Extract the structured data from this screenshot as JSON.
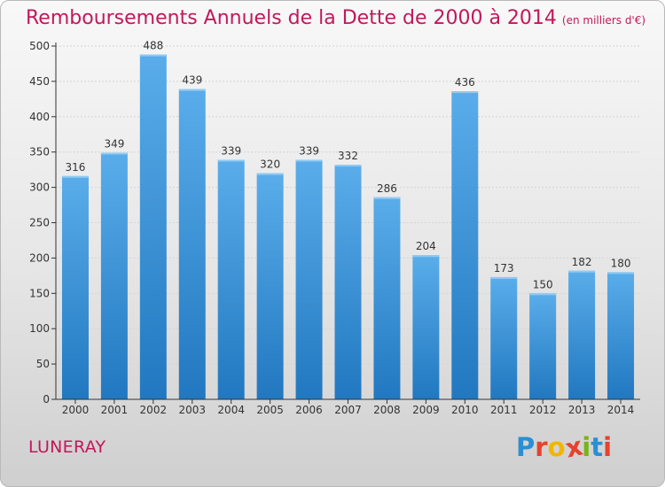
{
  "colors": {
    "title": "#c2185b",
    "bar_top": "#5aadea",
    "bar_bottom": "#2178c0",
    "axis": "#333333",
    "grid": "#d4d4d4",
    "brand": [
      "#2a8fd4",
      "#e8412c",
      "#f2b600",
      "#e8412c",
      "#7ab317",
      "#2a8fd4",
      "#e8412c"
    ]
  },
  "header": {
    "title": "Remboursements Annuels de la Dette de 2000 à 2014",
    "unit": "(en milliers d'€)"
  },
  "footer": {
    "city": "LUNERAY",
    "brand": [
      "P",
      "r",
      "o",
      "x",
      "i",
      "t",
      "i"
    ]
  },
  "chart_data": {
    "type": "bar",
    "title": "Remboursements Annuels de la Dette de 2000 à 2014",
    "subtitle": "(en milliers d'€)",
    "categories": [
      "2000",
      "2001",
      "2002",
      "2003",
      "2004",
      "2005",
      "2006",
      "2007",
      "2008",
      "2009",
      "2010",
      "2011",
      "2012",
      "2013",
      "2014"
    ],
    "values": [
      316,
      349,
      488,
      439,
      339,
      320,
      339,
      332,
      286,
      204,
      436,
      173,
      150,
      182,
      180
    ],
    "ylim": [
      0,
      500
    ],
    "yticks": [
      0,
      50,
      100,
      150,
      200,
      250,
      300,
      350,
      400,
      450,
      500
    ],
    "grid": true,
    "data_labels": true
  }
}
